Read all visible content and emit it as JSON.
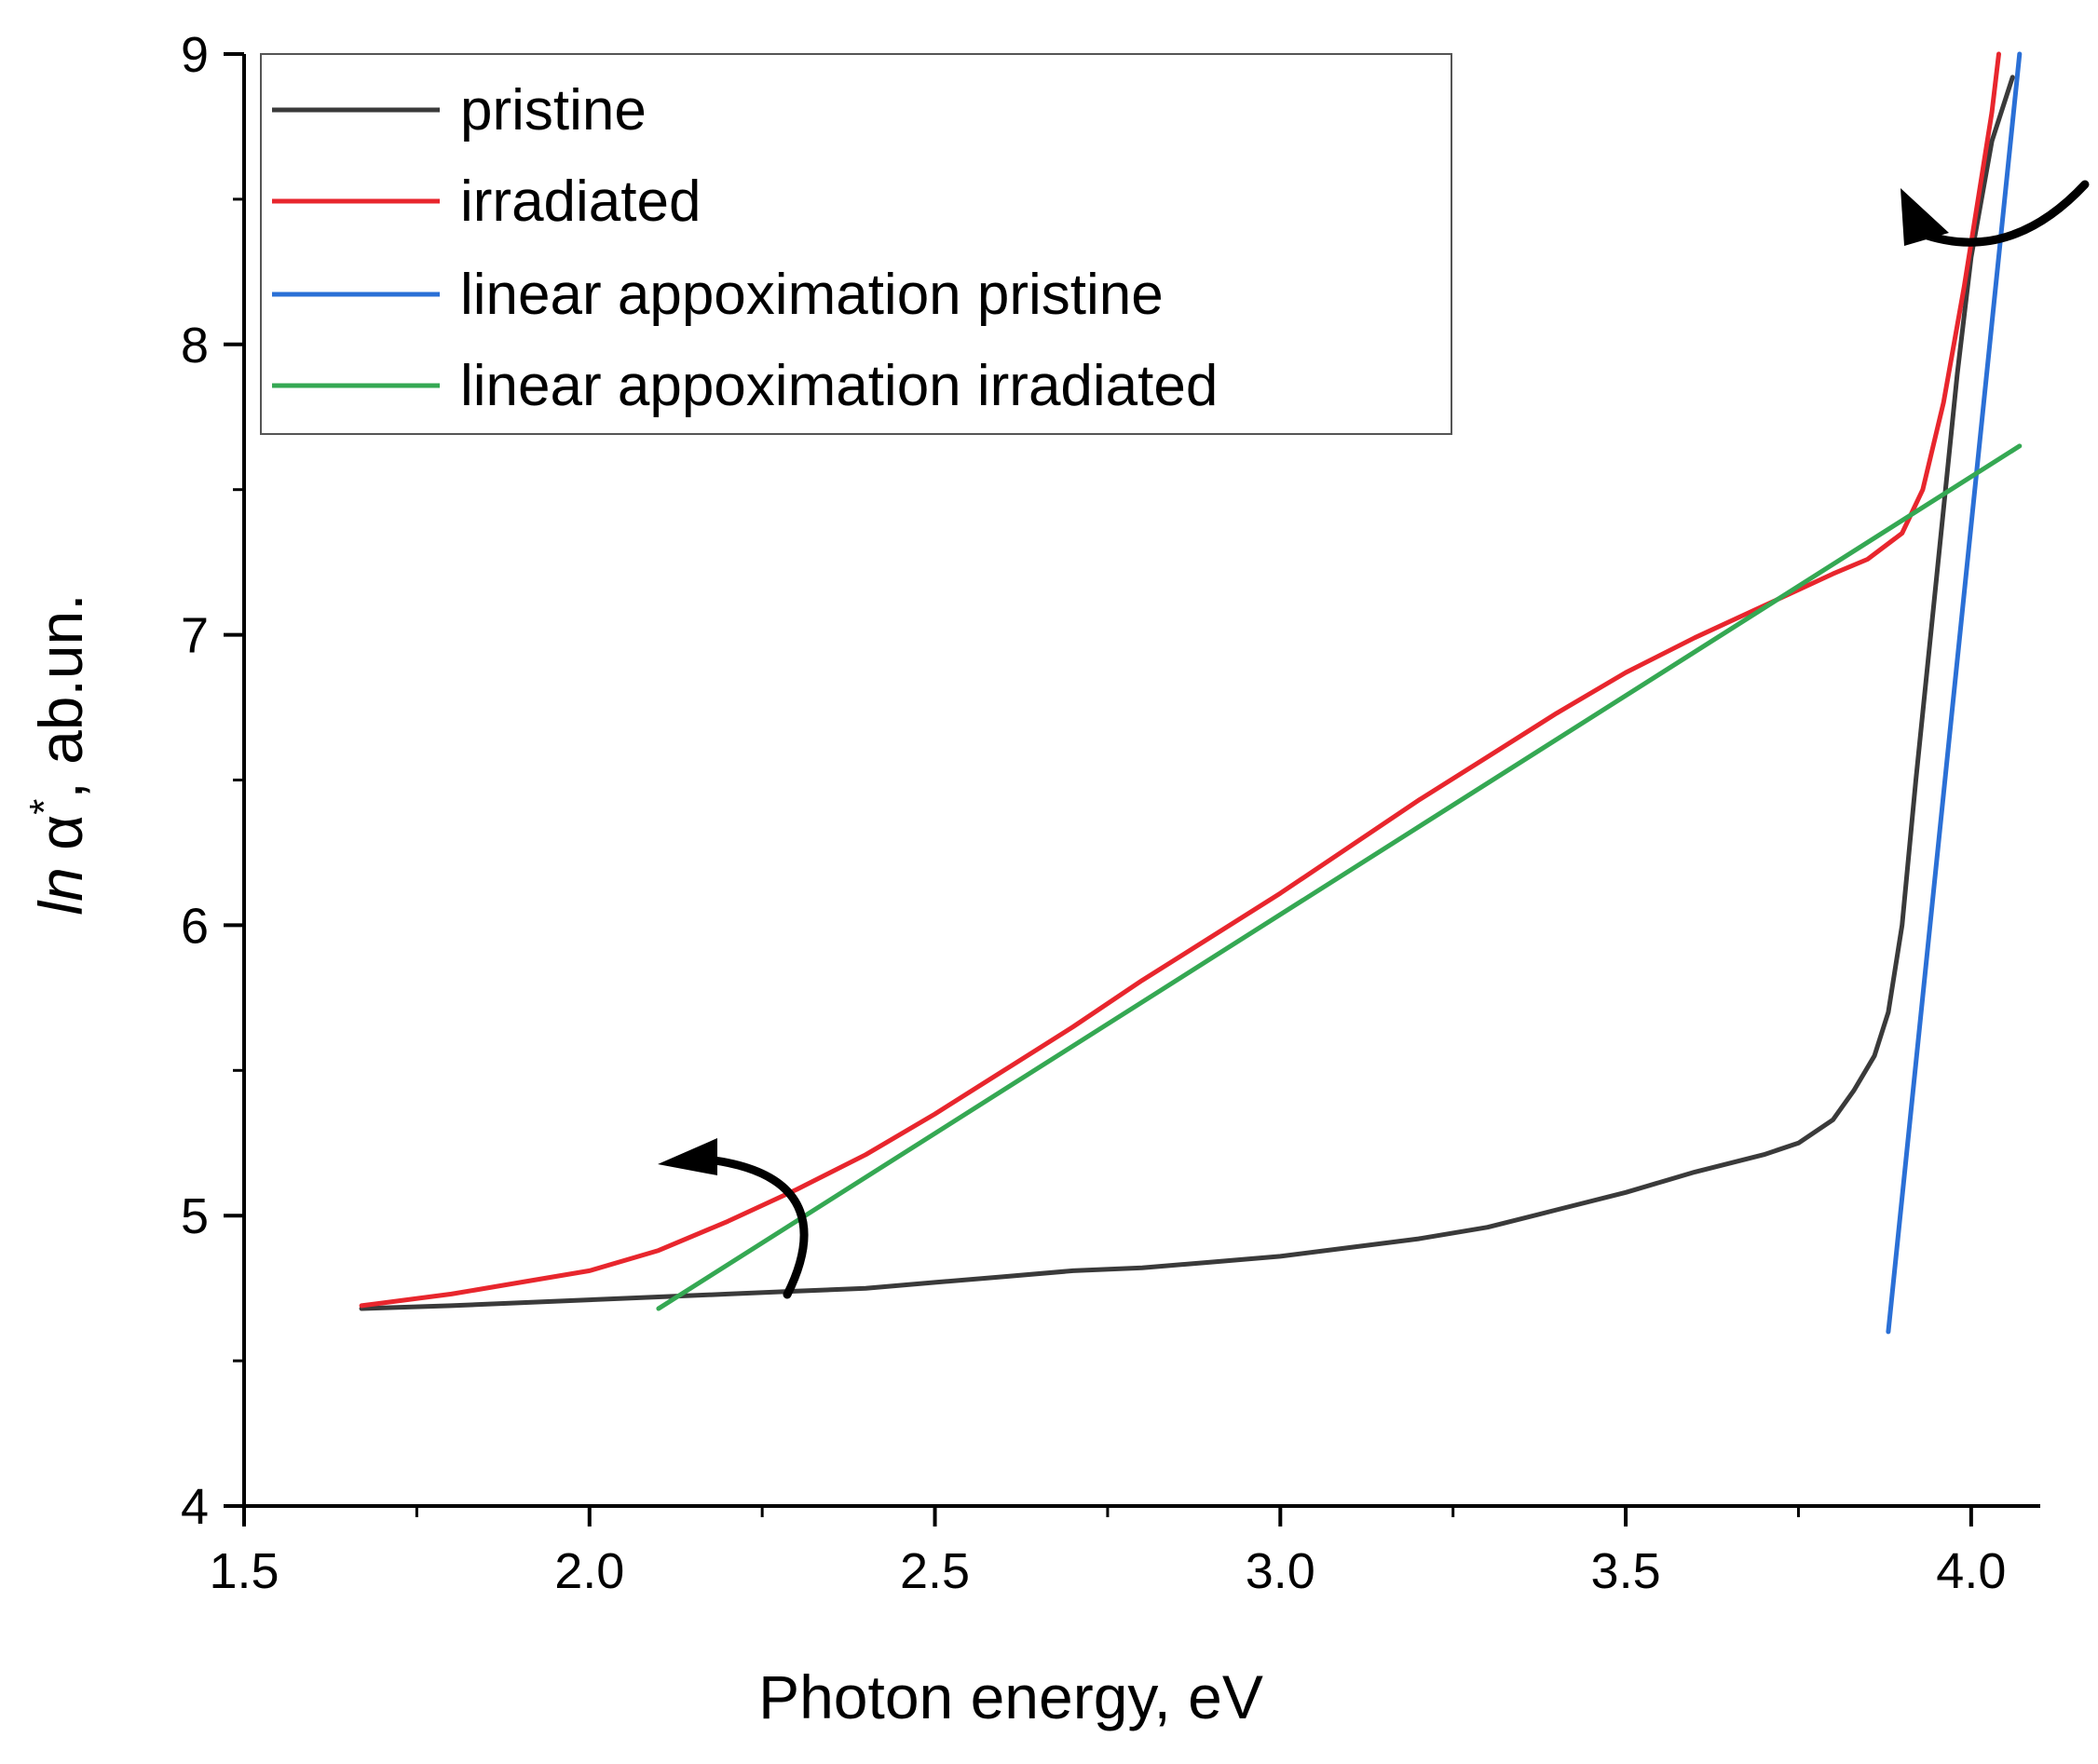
{
  "chart_data": {
    "type": "line",
    "xlabel": "Photon energy, eV",
    "ylabel": {
      "prefix": "ln",
      "symbol": "α",
      "superscript": "*",
      "suffix": ", ab.un."
    },
    "xlim": [
      1.5,
      4.1
    ],
    "ylim": [
      4,
      9
    ],
    "xticks": [
      1.5,
      2.0,
      2.5,
      3.0,
      3.5,
      4.0
    ],
    "xtick_labels": [
      "1.5",
      "2.0",
      "2.5",
      "3.0",
      "3.5",
      "4.0"
    ],
    "yticks": [
      4,
      5,
      6,
      7,
      8,
      9
    ],
    "ytick_labels": [
      "4",
      "5",
      "6",
      "7",
      "8",
      "9"
    ],
    "grid": false,
    "legend_position": "top-left",
    "series": [
      {
        "name": "pristine",
        "color": "#3a3a3a",
        "x": [
          1.67,
          1.8,
          1.9,
          2.0,
          2.1,
          2.2,
          2.3,
          2.4,
          2.5,
          2.6,
          2.7,
          2.8,
          2.9,
          3.0,
          3.1,
          3.2,
          3.3,
          3.4,
          3.5,
          3.6,
          3.7,
          3.75,
          3.8,
          3.83,
          3.86,
          3.88,
          3.9,
          3.92,
          3.95,
          3.98,
          4.0,
          4.03,
          4.06
        ],
        "y": [
          4.68,
          4.69,
          4.7,
          4.71,
          4.72,
          4.73,
          4.74,
          4.75,
          4.77,
          4.79,
          4.81,
          4.82,
          4.84,
          4.86,
          4.89,
          4.92,
          4.96,
          5.02,
          5.08,
          5.15,
          5.21,
          5.25,
          5.33,
          5.43,
          5.55,
          5.7,
          6.0,
          6.5,
          7.2,
          7.9,
          8.3,
          8.7,
          8.92
        ]
      },
      {
        "name": "irradiated",
        "color": "#e8262d",
        "x": [
          1.67,
          1.8,
          1.9,
          2.0,
          2.1,
          2.2,
          2.3,
          2.4,
          2.5,
          2.6,
          2.7,
          2.8,
          2.9,
          3.0,
          3.1,
          3.2,
          3.3,
          3.4,
          3.5,
          3.6,
          3.7,
          3.8,
          3.85,
          3.9,
          3.93,
          3.96,
          3.99,
          4.01,
          4.03,
          4.04
        ],
        "y": [
          4.69,
          4.73,
          4.77,
          4.81,
          4.88,
          4.98,
          5.09,
          5.21,
          5.35,
          5.5,
          5.65,
          5.81,
          5.96,
          6.11,
          6.27,
          6.43,
          6.58,
          6.73,
          6.87,
          6.99,
          7.1,
          7.21,
          7.26,
          7.35,
          7.5,
          7.8,
          8.2,
          8.5,
          8.8,
          9.0
        ]
      },
      {
        "name": "linear appoximation pristine",
        "color": "#2b70d6",
        "x": [
          3.88,
          4.07
        ],
        "y": [
          4.6,
          9.0
        ]
      },
      {
        "name": "linear appoximation irradiated",
        "color": "#35a853",
        "x": [
          2.1,
          4.07
        ],
        "y": [
          4.68,
          7.65
        ]
      }
    ]
  },
  "arrows": {
    "color": "#000000"
  }
}
